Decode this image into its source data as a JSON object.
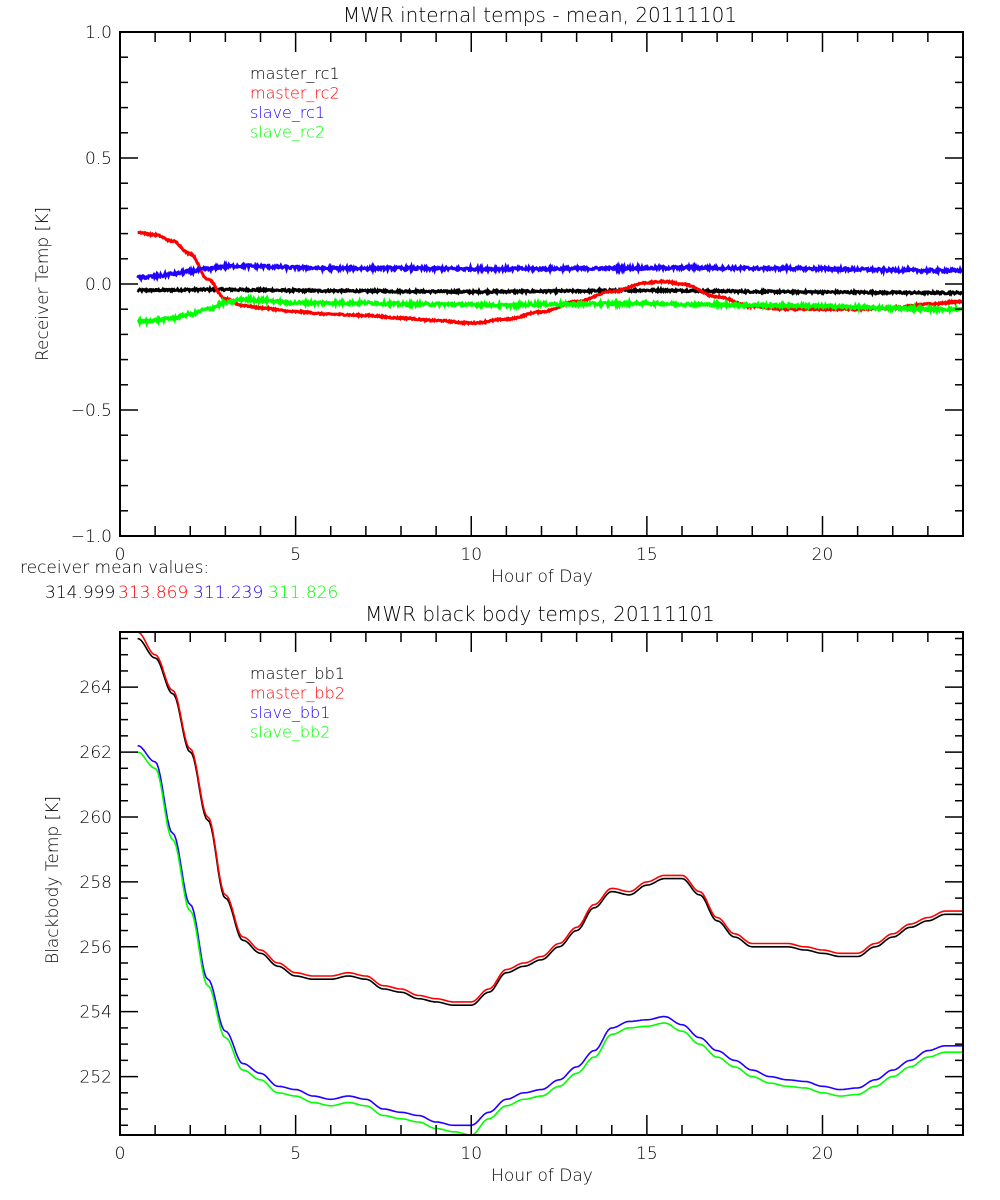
{
  "colors": {
    "black": "#000000",
    "red": "#ff0000",
    "blue": "#2200ff",
    "green": "#00ff00"
  },
  "receiver_means": {
    "label": "receiver mean values:",
    "values": [
      {
        "text": "314.999",
        "color": "#000000"
      },
      {
        "text": "313.869",
        "color": "#ff0000"
      },
      {
        "text": "311.239",
        "color": "#2200ff"
      },
      {
        "text": "311.826",
        "color": "#00ff00"
      }
    ]
  },
  "chart_data": [
    {
      "type": "line",
      "title": "MWR internal temps - mean, 20111101",
      "xlabel": "Hour of Day",
      "ylabel": "Receiver Temp [K]",
      "xlim": [
        0,
        24
      ],
      "ylim": [
        -1.0,
        1.0
      ],
      "xticks": [
        0,
        5,
        10,
        15,
        20
      ],
      "xtick_labels": [
        "0",
        "5",
        "10",
        "15",
        "20"
      ],
      "yticks": [
        -1.0,
        -0.5,
        0.0,
        0.5,
        1.0
      ],
      "ytick_labels": [
        "-1.0",
        "-0.5",
        "0.0",
        "0.5",
        "1.0"
      ],
      "grid": false,
      "legend_position": "top-left",
      "x": [
        0.5,
        1,
        1.5,
        2,
        2.5,
        3,
        3.5,
        4,
        5,
        6,
        7,
        8,
        9,
        10,
        11,
        12,
        13,
        14,
        15,
        15.5,
        16,
        17,
        18,
        19,
        20,
        21,
        22,
        23,
        24
      ],
      "series": [
        {
          "name": "master_rc1",
          "color": "#000000",
          "noise": 0.004,
          "values": [
            -0.025,
            -0.025,
            -0.024,
            -0.023,
            -0.022,
            -0.022,
            -0.023,
            -0.024,
            -0.026,
            -0.027,
            -0.028,
            -0.029,
            -0.03,
            -0.031,
            -0.03,
            -0.029,
            -0.028,
            -0.026,
            -0.025,
            -0.025,
            -0.026,
            -0.028,
            -0.03,
            -0.031,
            -0.032,
            -0.033,
            -0.034,
            -0.035,
            -0.035
          ]
        },
        {
          "name": "master_rc2",
          "color": "#ff0000",
          "noise": 0.003,
          "values": [
            0.205,
            0.195,
            0.17,
            0.12,
            0.02,
            -0.06,
            -0.085,
            -0.095,
            -0.11,
            -0.12,
            -0.125,
            -0.135,
            -0.145,
            -0.155,
            -0.14,
            -0.11,
            -0.07,
            -0.03,
            0.005,
            0.01,
            0.0,
            -0.05,
            -0.09,
            -0.1,
            -0.1,
            -0.1,
            -0.095,
            -0.08,
            -0.07
          ]
        },
        {
          "name": "slave_rc1",
          "color": "#2200ff",
          "noise": 0.006,
          "values": [
            0.025,
            0.03,
            0.04,
            0.05,
            0.06,
            0.07,
            0.072,
            0.07,
            0.065,
            0.062,
            0.062,
            0.062,
            0.061,
            0.06,
            0.06,
            0.06,
            0.061,
            0.062,
            0.063,
            0.064,
            0.065,
            0.064,
            0.062,
            0.062,
            0.06,
            0.058,
            0.055,
            0.053,
            0.053
          ]
        },
        {
          "name": "slave_rc2",
          "color": "#00ff00",
          "noise": 0.006,
          "values": [
            -0.15,
            -0.145,
            -0.135,
            -0.12,
            -0.1,
            -0.075,
            -0.06,
            -0.065,
            -0.075,
            -0.075,
            -0.075,
            -0.08,
            -0.08,
            -0.082,
            -0.085,
            -0.08,
            -0.08,
            -0.078,
            -0.076,
            -0.078,
            -0.08,
            -0.082,
            -0.084,
            -0.085,
            -0.088,
            -0.092,
            -0.096,
            -0.1,
            -0.1
          ]
        }
      ]
    },
    {
      "type": "line",
      "title": "MWR black body temps, 20111101",
      "xlabel": "Hour of Day",
      "ylabel": "Blackbody Temp [K]",
      "xlim": [
        0,
        24
      ],
      "ylim": [
        250.2,
        265.7
      ],
      "xticks": [
        0,
        5,
        10,
        15,
        20
      ],
      "xtick_labels": [
        "0",
        "5",
        "10",
        "15",
        "20"
      ],
      "yticks": [
        252,
        254,
        256,
        258,
        260,
        262,
        264
      ],
      "ytick_labels": [
        "252",
        "254",
        "256",
        "258",
        "260",
        "262",
        "264"
      ],
      "grid": false,
      "legend_position": "top-left",
      "x": [
        0.5,
        1,
        1.5,
        2,
        2.5,
        3,
        3.5,
        4,
        4.5,
        5,
        5.5,
        6,
        6.5,
        7,
        7.5,
        8,
        8.5,
        9,
        9.5,
        10,
        10.5,
        11,
        11.5,
        12,
        12.5,
        13,
        13.5,
        14,
        14.5,
        15,
        15.5,
        16,
        16.5,
        17,
        17.5,
        18,
        18.5,
        19,
        19.5,
        20,
        20.5,
        21,
        21.5,
        22,
        22.5,
        23,
        23.5,
        24
      ],
      "series": [
        {
          "name": "master_bb1",
          "color": "#000000",
          "values": [
            265.5,
            264.9,
            263.8,
            262.0,
            259.9,
            257.5,
            256.2,
            255.8,
            255.4,
            255.1,
            255.0,
            255.0,
            255.1,
            255.0,
            254.7,
            254.6,
            254.4,
            254.3,
            254.2,
            254.2,
            254.6,
            255.2,
            255.4,
            255.6,
            256.0,
            256.5,
            257.2,
            257.7,
            257.6,
            257.9,
            258.1,
            258.1,
            257.6,
            256.8,
            256.3,
            256.0,
            256.0,
            256.0,
            255.9,
            255.8,
            255.7,
            255.7,
            256.0,
            256.3,
            256.6,
            256.8,
            257.0,
            257.0
          ]
        },
        {
          "name": "master_bb2",
          "color": "#ff0000",
          "values": [
            265.7,
            265.0,
            263.9,
            262.1,
            260.0,
            257.6,
            256.3,
            255.9,
            255.5,
            255.2,
            255.1,
            255.1,
            255.2,
            255.1,
            254.8,
            254.7,
            254.5,
            254.4,
            254.3,
            254.3,
            254.7,
            255.3,
            255.5,
            255.7,
            256.1,
            256.6,
            257.3,
            257.8,
            257.7,
            258.0,
            258.2,
            258.2,
            257.7,
            256.9,
            256.4,
            256.1,
            256.1,
            256.1,
            256.0,
            255.9,
            255.8,
            255.8,
            256.1,
            256.4,
            256.7,
            256.9,
            257.1,
            257.1
          ]
        },
        {
          "name": "slave_bb1",
          "color": "#2200ff",
          "values": [
            262.2,
            261.7,
            259.5,
            257.3,
            255.0,
            253.4,
            252.4,
            252.1,
            251.7,
            251.6,
            251.4,
            251.3,
            251.4,
            251.3,
            251.0,
            250.9,
            250.8,
            250.6,
            250.5,
            250.5,
            250.9,
            251.3,
            251.5,
            251.6,
            251.9,
            252.3,
            252.8,
            253.5,
            253.7,
            253.75,
            253.85,
            253.6,
            253.2,
            252.8,
            252.5,
            252.2,
            252.0,
            251.9,
            251.85,
            251.7,
            251.6,
            251.65,
            251.9,
            252.2,
            252.5,
            252.8,
            252.95,
            252.95
          ]
        },
        {
          "name": "slave_bb2",
          "color": "#00ff00",
          "values": [
            262.0,
            261.5,
            259.3,
            257.1,
            254.8,
            253.2,
            252.2,
            251.9,
            251.5,
            251.4,
            251.2,
            251.1,
            251.2,
            251.1,
            250.8,
            250.7,
            250.6,
            250.4,
            250.3,
            250.2,
            250.7,
            251.1,
            251.3,
            251.4,
            251.7,
            252.1,
            252.6,
            253.3,
            253.5,
            253.55,
            253.65,
            253.4,
            253.0,
            252.6,
            252.3,
            252.0,
            251.8,
            251.7,
            251.65,
            251.5,
            251.4,
            251.45,
            251.7,
            252.0,
            252.3,
            252.6,
            252.75,
            252.75
          ]
        }
      ]
    }
  ]
}
